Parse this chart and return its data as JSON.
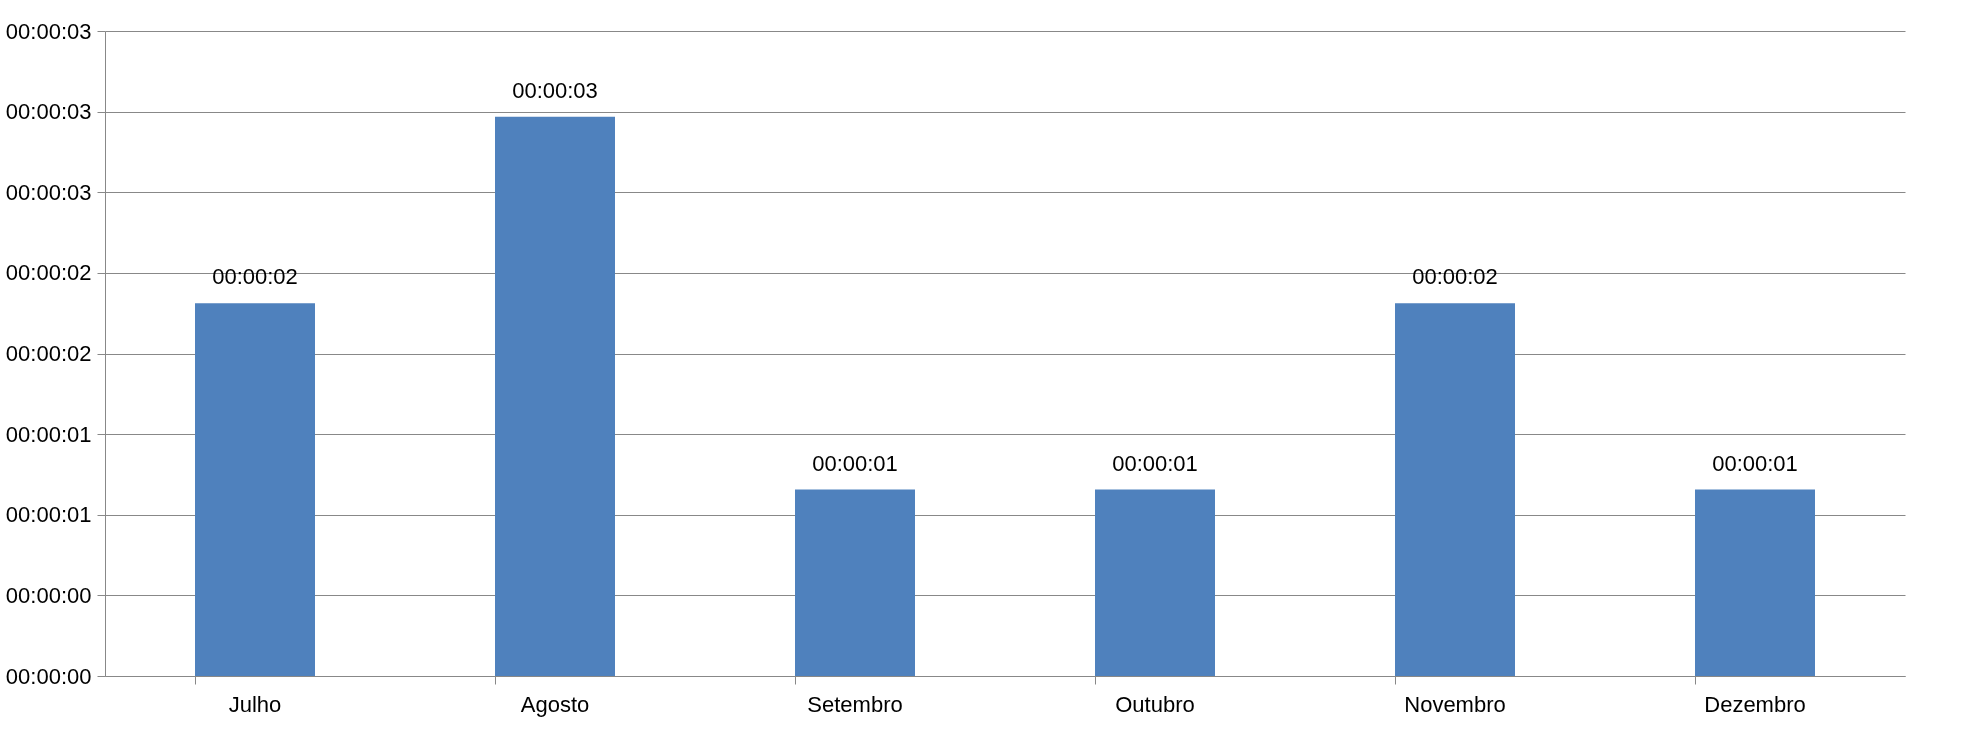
{
  "chart_data": {
    "type": "bar",
    "categories": [
      "Julho",
      "Agosto",
      "Setembro",
      "Outubro",
      "Novembro",
      "Dezembro"
    ],
    "values": [
      2,
      3,
      1,
      1,
      2,
      1
    ],
    "value_labels": [
      "00:00:02",
      "00:00:03",
      "00:00:01",
      "00:00:01",
      "00:00:02",
      "00:00:01"
    ],
    "color": "#4f81bd",
    "ylim": [
      0,
      3.46
    ],
    "yticks": [
      {
        "value": 0,
        "label": "00:00:00"
      },
      {
        "value": 0.4325,
        "label": "00:00:00"
      },
      {
        "value": 0.865,
        "label": "00:00:01"
      },
      {
        "value": 1.2975,
        "label": "00:00:01"
      },
      {
        "value": 1.73,
        "label": "00:00:02"
      },
      {
        "value": 2.1625,
        "label": "00:00:02"
      },
      {
        "value": 2.595,
        "label": "00:00:03"
      },
      {
        "value": 3.0275,
        "label": "00:00:03"
      },
      {
        "value": 3.46,
        "label": "00:00:03"
      }
    ],
    "grid": "y"
  }
}
